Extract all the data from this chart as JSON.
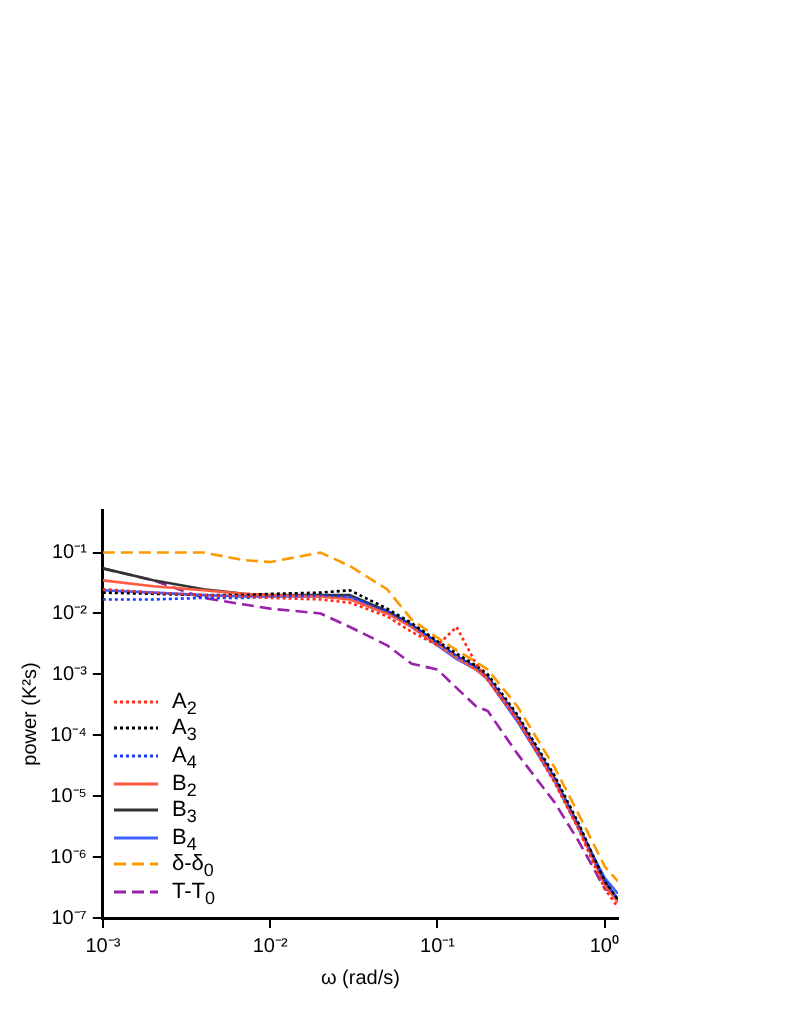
{
  "chart_data": {
    "type": "line",
    "xlabel": "ω (rad/s)",
    "ylabel": "power (K²s)",
    "log": "xy",
    "grid": false,
    "legend": "left",
    "marker": "none",
    "xlim": [
      0.001,
      1.2
    ],
    "ylim": [
      1e-07,
      0.5
    ],
    "xticks": [
      {
        "value": 0.001,
        "label": "10⁻³"
      },
      {
        "value": 0.01,
        "label": "10⁻²"
      },
      {
        "value": 0.1,
        "label": "10⁻¹"
      },
      {
        "value": 1,
        "label": "10⁰"
      }
    ],
    "yticks": [
      {
        "value": 1e-07,
        "label": "10⁻⁷"
      },
      {
        "value": 1e-06,
        "label": "10⁻⁶"
      },
      {
        "value": 1e-05,
        "label": "10⁻⁵"
      },
      {
        "value": 0.0001,
        "label": "10⁻⁴"
      },
      {
        "value": 0.001,
        "label": "10⁻³"
      },
      {
        "value": 0.01,
        "label": "10⁻²"
      },
      {
        "value": 0.1,
        "label": "10⁻¹"
      }
    ],
    "x": [
      0.001,
      0.002,
      0.004,
      0.007,
      0.01,
      0.02,
      0.03,
      0.05,
      0.07,
      0.1,
      0.13,
      0.17,
      0.2,
      0.3,
      0.5,
      0.7,
      1.0,
      1.2
    ],
    "series": [
      {
        "name": "A$_{2}$",
        "color": "#ff2a1a",
        "line_style": "dotted",
        "values": [
          0.025,
          0.022,
          0.02,
          0.019,
          0.018,
          0.017,
          0.015,
          0.009,
          0.005,
          0.003,
          0.006,
          0.0015,
          0.0008,
          0.00018,
          1.7e-05,
          2.8e-06,
          3e-07,
          1.5e-07
        ]
      },
      {
        "name": "A$_{3}$",
        "color": "#000000",
        "line_style": "dotted",
        "values": [
          0.022,
          0.021,
          0.02,
          0.02,
          0.021,
          0.022,
          0.024,
          0.012,
          0.007,
          0.0035,
          0.0022,
          0.0014,
          0.001,
          0.00022,
          2.2e-05,
          3.5e-06,
          4e-07,
          2e-07
        ]
      },
      {
        "name": "A$_{4}$",
        "color": "#1a3aff",
        "line_style": "dotted",
        "values": [
          0.017,
          0.017,
          0.018,
          0.018,
          0.019,
          0.02,
          0.019,
          0.011,
          0.0065,
          0.0033,
          0.002,
          0.0013,
          0.0009,
          0.0002,
          2e-05,
          3.2e-06,
          4e-07,
          2e-07
        ]
      },
      {
        "name": "B$_{2}$",
        "color": "#ff5a40",
        "line_style": "solid",
        "values": [
          0.035,
          0.028,
          0.024,
          0.021,
          0.02,
          0.019,
          0.017,
          0.01,
          0.006,
          0.0031,
          0.0019,
          0.0012,
          0.00085,
          0.00019,
          1.9e-05,
          3e-06,
          3.5e-07,
          1.8e-07
        ]
      },
      {
        "name": "B$_{3}$",
        "color": "#333333",
        "line_style": "solid",
        "values": [
          0.055,
          0.035,
          0.025,
          0.021,
          0.02,
          0.02,
          0.02,
          0.011,
          0.0065,
          0.0033,
          0.002,
          0.0013,
          0.0009,
          0.0002,
          2e-05,
          3.2e-06,
          4e-07,
          2e-07
        ]
      },
      {
        "name": "B$_{4}$",
        "color": "#4060ff",
        "line_style": "solid",
        "values": [
          0.024,
          0.022,
          0.02,
          0.019,
          0.019,
          0.019,
          0.018,
          0.0105,
          0.006,
          0.003,
          0.0018,
          0.0012,
          0.00082,
          0.00017,
          1.8e-05,
          2.9e-06,
          4.5e-07,
          2.5e-07
        ]
      },
      {
        "name": "δ-δ$_{0}$",
        "color": "#ff9900",
        "line_style": "dashed",
        "values": [
          0.1,
          0.1,
          0.1,
          0.075,
          0.07,
          0.1,
          0.06,
          0.025,
          0.008,
          0.004,
          0.0025,
          0.0016,
          0.0012,
          0.0003,
          3e-05,
          5e-06,
          7e-07,
          4e-07
        ]
      },
      {
        "name": "T-T$_{0}$",
        "color": "#9922aa",
        "line_style": "dashed",
        "values": [
          0.055,
          0.035,
          0.018,
          0.014,
          0.012,
          0.01,
          0.006,
          0.003,
          0.0015,
          0.0012,
          0.0006,
          0.0003,
          0.00025,
          5e-05,
          8e-06,
          1.8e-06,
          3e-07,
          2.5e-07
        ]
      }
    ]
  }
}
